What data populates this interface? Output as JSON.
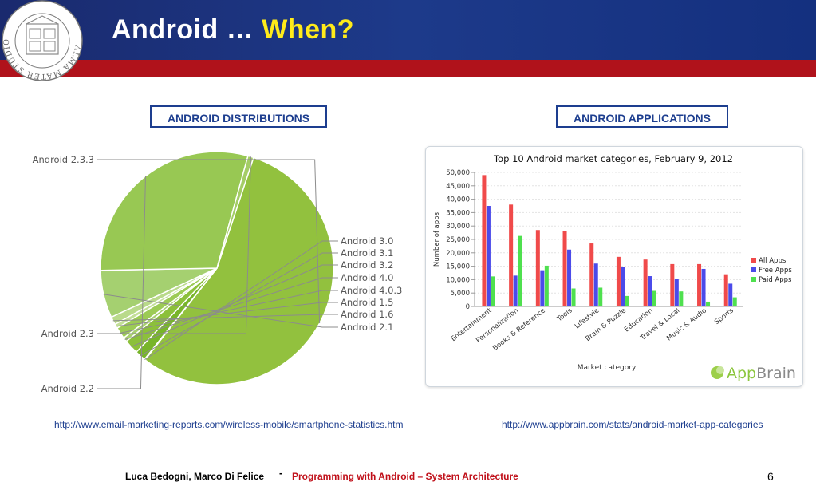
{
  "slide": {
    "title_main": "Android …",
    "title_highlight": "When?",
    "logo_text": "ALMA MATER STUDIORUM · A.D. 1088",
    "left_box": "ANDROID DISTRIBUTIONS",
    "right_box": "ANDROID APPLICATIONS",
    "left_link": "http://www.email-marketing-reports.com/wireless-mobile/smartphone-statistics.htm",
    "right_link": "http://www.appbrain.com/stats/android-market-app-categories",
    "authors": "Luca Bedogni, Marco Di Felice",
    "dash": "-",
    "course": "Programming with Android – System Architecture",
    "page": "6",
    "appbrain_app": "App",
    "appbrain_brain": "Brain"
  },
  "colors": {
    "banner": "#1a2a6e",
    "red_bar": "#b0121b",
    "title_highlight": "#ffeb1a",
    "box_border": "#1d3e8f",
    "all_apps": "#f04a4a",
    "free_apps": "#4b4bea",
    "paid_apps": "#4fe04f"
  },
  "chart_data": [
    {
      "type": "pie",
      "labels": [
        "Android 2.3.3",
        "Android 3.0",
        "Android 3.1",
        "Android 3.2",
        "Android 4.0",
        "Android 4.0.3",
        "Android 1.5",
        "Android 1.6",
        "Android 2.1",
        "Android 2.2",
        "Android 2.3"
      ],
      "values": [
        55.5,
        0.1,
        1.5,
        2.0,
        0.6,
        1.6,
        0.6,
        1.1,
        6.6,
        29.6,
        0.8
      ]
    },
    {
      "type": "bar",
      "title": "Top 10 Android market categories, February 9, 2012",
      "xlabel": "Market category",
      "ylabel": "Number of apps",
      "ylim": [
        0,
        50000
      ],
      "yticks": [
        "0",
        "5,000",
        "10,000",
        "15,000",
        "20,000",
        "25,000",
        "30,000",
        "35,000",
        "40,000",
        "45,000",
        "50,000"
      ],
      "categories": [
        "Entertainment",
        "Personalization",
        "Books & Reference",
        "Tools",
        "Lifestyle",
        "Brain & Puzzle",
        "Education",
        "Travel & Local",
        "Music & Audio",
        "Sports"
      ],
      "series": [
        {
          "name": "All Apps",
          "values": [
            49000,
            38000,
            28500,
            28000,
            23500,
            18500,
            17500,
            15800,
            15800,
            12000
          ]
        },
        {
          "name": "Free Apps",
          "values": [
            37500,
            11500,
            13500,
            21200,
            16000,
            14700,
            11300,
            10200,
            14000,
            8500
          ]
        },
        {
          "name": "Paid Apps",
          "values": [
            11200,
            26300,
            15200,
            6700,
            7000,
            3900,
            5800,
            5600,
            1800,
            3400
          ]
        }
      ],
      "legend": "right"
    }
  ]
}
